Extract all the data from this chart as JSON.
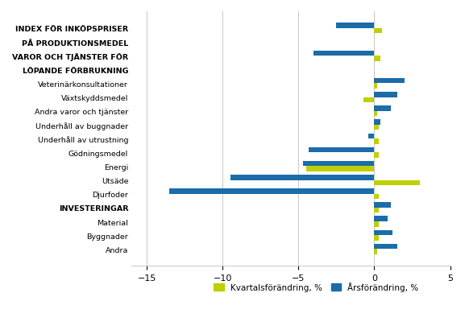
{
  "categories": [
    "INDEX FÖR INKÖPSPRISER",
    "PÅ PRODUKTIONSMEDEL",
    "VAROR OCH TJÄNSTER FÖR",
    "LÖPANDE FÖRBRUKNING",
    "Veterinärkonsultationer",
    "Växtskyddsmedel",
    "Andra varor och tjänster",
    "Underhåll av buggnader",
    "Underhåll av utrustning",
    "Gödningsmedel",
    "Energi",
    "Utsäde",
    "Djurfoder",
    "INVESTERINGAR",
    "Material",
    "Byggnader",
    "Andra"
  ],
  "bar_positions": [
    0,
    null,
    2,
    null,
    4,
    5,
    6,
    7,
    8,
    9,
    10,
    11,
    12,
    13,
    14,
    15,
    16
  ],
  "kvartal": [
    0.5,
    null,
    0.4,
    null,
    0.2,
    -0.7,
    0.2,
    0.3,
    0.3,
    0.3,
    -4.5,
    3.0,
    0.3,
    0.3,
    0.3,
    0.3,
    0.2
  ],
  "arsfor": [
    -2.5,
    null,
    -4.0,
    null,
    2.0,
    1.5,
    1.1,
    0.4,
    -0.4,
    -4.3,
    -4.7,
    -9.5,
    -13.5,
    1.1,
    0.9,
    1.2,
    1.5
  ],
  "bold_indices": [
    0,
    1,
    2,
    3,
    13
  ],
  "kvartal_color": "#bdd000",
  "arsfor_color": "#1b6ca8",
  "xlim": [
    -16,
    5
  ],
  "xticks": [
    -15,
    -10,
    -5,
    0,
    5
  ],
  "bar_height": 0.38,
  "figsize": [
    5.77,
    4.06
  ],
  "dpi": 100,
  "legend_labels": [
    "Kvartalsförändring, %",
    "Årsförändring, %"
  ],
  "grid_color": "#c8c8c8"
}
